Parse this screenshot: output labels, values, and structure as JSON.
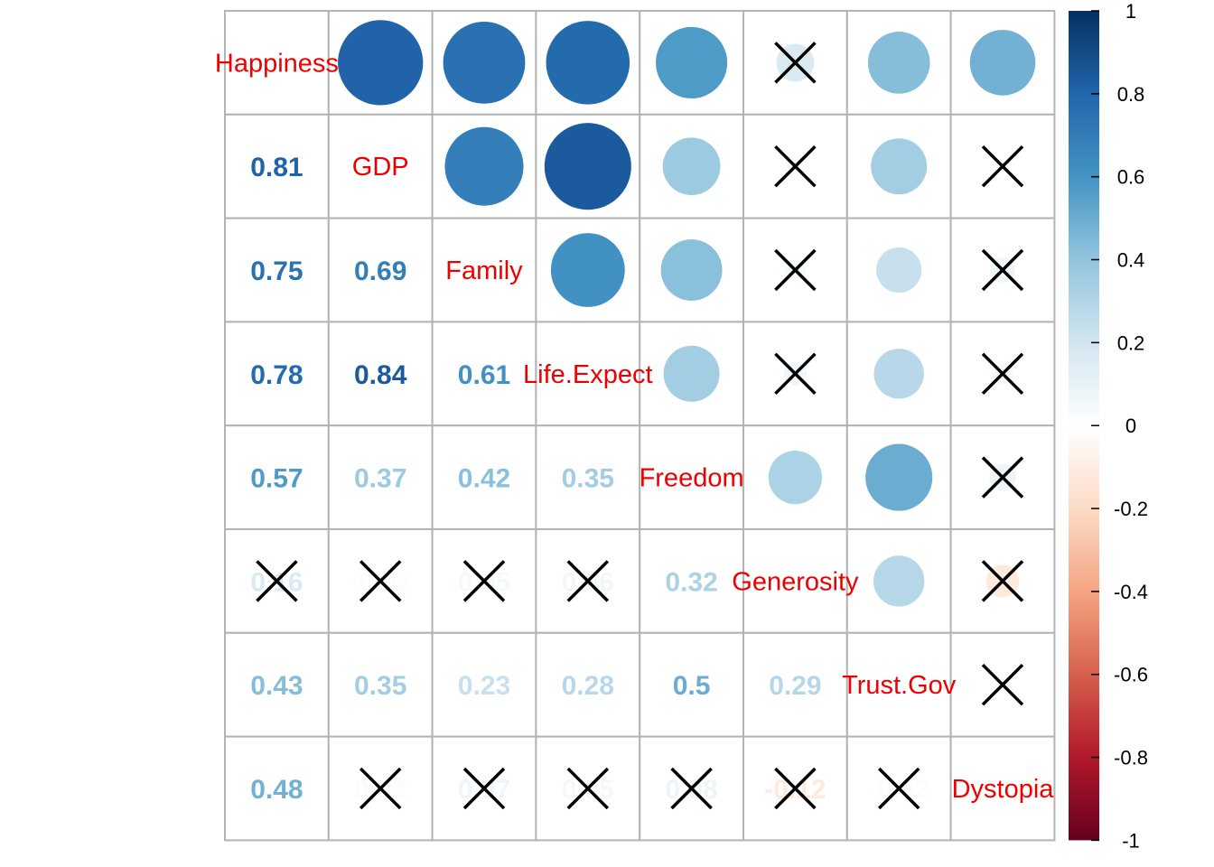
{
  "chart_data": {
    "type": "heatmap",
    "variables": [
      "Happiness",
      "GDP",
      "Family",
      "Life.Expect",
      "Freedom",
      "Generosity",
      "Trust.Gov",
      "Dystopia"
    ],
    "upper_display": "circle",
    "lower_display": "number",
    "diagonal_display": "variable-name",
    "insignificant_marker": "cross",
    "colorbar": {
      "range": [
        -1,
        1
      ],
      "ticks": [
        "1",
        "0.8",
        "0.6",
        "0.4",
        "0.2",
        "0",
        "-0.2",
        "-0.4",
        "-0.6",
        "-0.8",
        "-1"
      ],
      "placement": "right"
    },
    "matrix": [
      [
        1.0,
        0.81,
        0.75,
        0.78,
        0.57,
        0.16,
        0.43,
        0.48
      ],
      [
        0.81,
        1.0,
        0.69,
        0.84,
        0.37,
        -0.02,
        0.35,
        0.02
      ],
      [
        0.75,
        0.69,
        1.0,
        0.61,
        0.42,
        0.05,
        0.23,
        0.07
      ],
      [
        0.78,
        0.84,
        0.61,
        1.0,
        0.35,
        0.06,
        0.28,
        0.05
      ],
      [
        0.57,
        0.37,
        0.42,
        0.35,
        1.0,
        0.32,
        0.5,
        0.08
      ],
      [
        0.16,
        -0.02,
        0.05,
        0.06,
        0.32,
        1.0,
        0.29,
        -0.12
      ],
      [
        0.43,
        0.35,
        0.23,
        0.28,
        0.5,
        0.29,
        1.0,
        -0.02
      ],
      [
        0.48,
        0.02,
        0.07,
        0.05,
        0.08,
        -0.12,
        -0.02,
        1.0
      ]
    ],
    "lower_labels": [
      [],
      [
        "0.81"
      ],
      [
        "0.75",
        "0.69"
      ],
      [
        "0.78",
        "0.84",
        "0.61"
      ],
      [
        "0.57",
        "0.37",
        "0.42",
        "0.35"
      ],
      [
        "0.16",
        "-0.02",
        "0.05",
        "0.06",
        "0.32"
      ],
      [
        "0.43",
        "0.35",
        "0.23",
        "0.28",
        "0.5",
        "0.29"
      ],
      [
        "0.48",
        "0.02",
        "0.07",
        "0.05",
        "0.08",
        "-0.12",
        "-0.02"
      ]
    ],
    "insignificant": [
      [
        false,
        false,
        false,
        false,
        false,
        true,
        false,
        false
      ],
      [
        false,
        false,
        false,
        false,
        false,
        true,
        false,
        true
      ],
      [
        false,
        false,
        false,
        false,
        false,
        true,
        false,
        true
      ],
      [
        false,
        false,
        false,
        false,
        false,
        true,
        false,
        true
      ],
      [
        false,
        false,
        false,
        false,
        false,
        false,
        false,
        true
      ],
      [
        true,
        true,
        true,
        true,
        false,
        false,
        false,
        true
      ],
      [
        false,
        false,
        false,
        false,
        false,
        false,
        false,
        true
      ],
      [
        false,
        true,
        true,
        true,
        true,
        true,
        true,
        false
      ]
    ],
    "colors": {
      "negative_end": "#67001f",
      "positive_end": "#053061",
      "diagonal_label": "#ee0000",
      "grid": "#b3b3b3",
      "cross": "#000000"
    }
  }
}
